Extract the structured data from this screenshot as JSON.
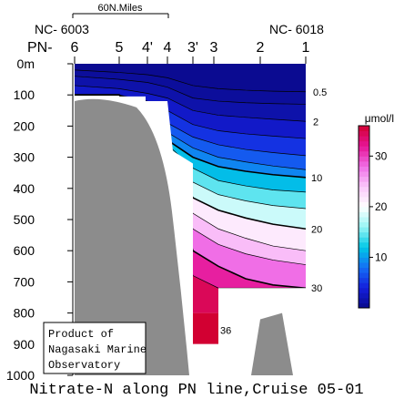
{
  "chart_data": {
    "type": "heatmap",
    "title": "Nitrate-N along PN line,Cruise 05-01",
    "scale_bar": {
      "label": "60N.Miles",
      "length_nmi": 60
    },
    "station_ids": {
      "left": "NC- 6003",
      "right": "NC- 6018"
    },
    "station_prefix": "PN- ",
    "stations": [
      {
        "name": "6",
        "label": "6"
      },
      {
        "name": "5",
        "label": "5"
      },
      {
        "name": "4'",
        "label": "4'"
      },
      {
        "name": "4",
        "label": "4"
      },
      {
        "name": "3'",
        "label": "3'"
      },
      {
        "name": "3",
        "label": "3"
      },
      {
        "name": "2",
        "label": "2"
      },
      {
        "name": "1",
        "label": "1"
      }
    ],
    "y_axis": {
      "range": [
        0,
        1000
      ],
      "ticks": [
        {
          "value": 0,
          "label": "0m"
        },
        {
          "value": 100,
          "label": "100"
        },
        {
          "value": 200,
          "label": "200"
        },
        {
          "value": 300,
          "label": "300"
        },
        {
          "value": 400,
          "label": "400"
        },
        {
          "value": 500,
          "label": "500"
        },
        {
          "value": 600,
          "label": "600"
        },
        {
          "value": 700,
          "label": "700"
        },
        {
          "value": 800,
          "label": "800"
        },
        {
          "value": 900,
          "label": "900"
        },
        {
          "value": 1000,
          "label": "1000"
        }
      ]
    },
    "contour_labels": [
      {
        "label": "0.5",
        "value": 0.5,
        "depth": 90
      },
      {
        "label": "2",
        "value": 2,
        "depth": 185
      },
      {
        "label": "10",
        "value": 10,
        "depth": 365
      },
      {
        "label": "20",
        "value": 20,
        "depth": 530
      },
      {
        "label": "30",
        "value": 30,
        "depth": 720
      },
      {
        "label": "36",
        "value": 36,
        "depth": 855
      }
    ],
    "colorbar": {
      "unit": "μmol/l",
      "range": [
        0,
        36
      ],
      "ticks": [
        {
          "value": 30,
          "label": "30"
        },
        {
          "value": 20,
          "label": "20"
        },
        {
          "value": 10,
          "label": "10"
        }
      ]
    },
    "credit": [
      "Product of",
      "Nagasaki Marine",
      "Observatory"
    ],
    "colors": {
      "topography": "#8c8c8c"
    }
  }
}
